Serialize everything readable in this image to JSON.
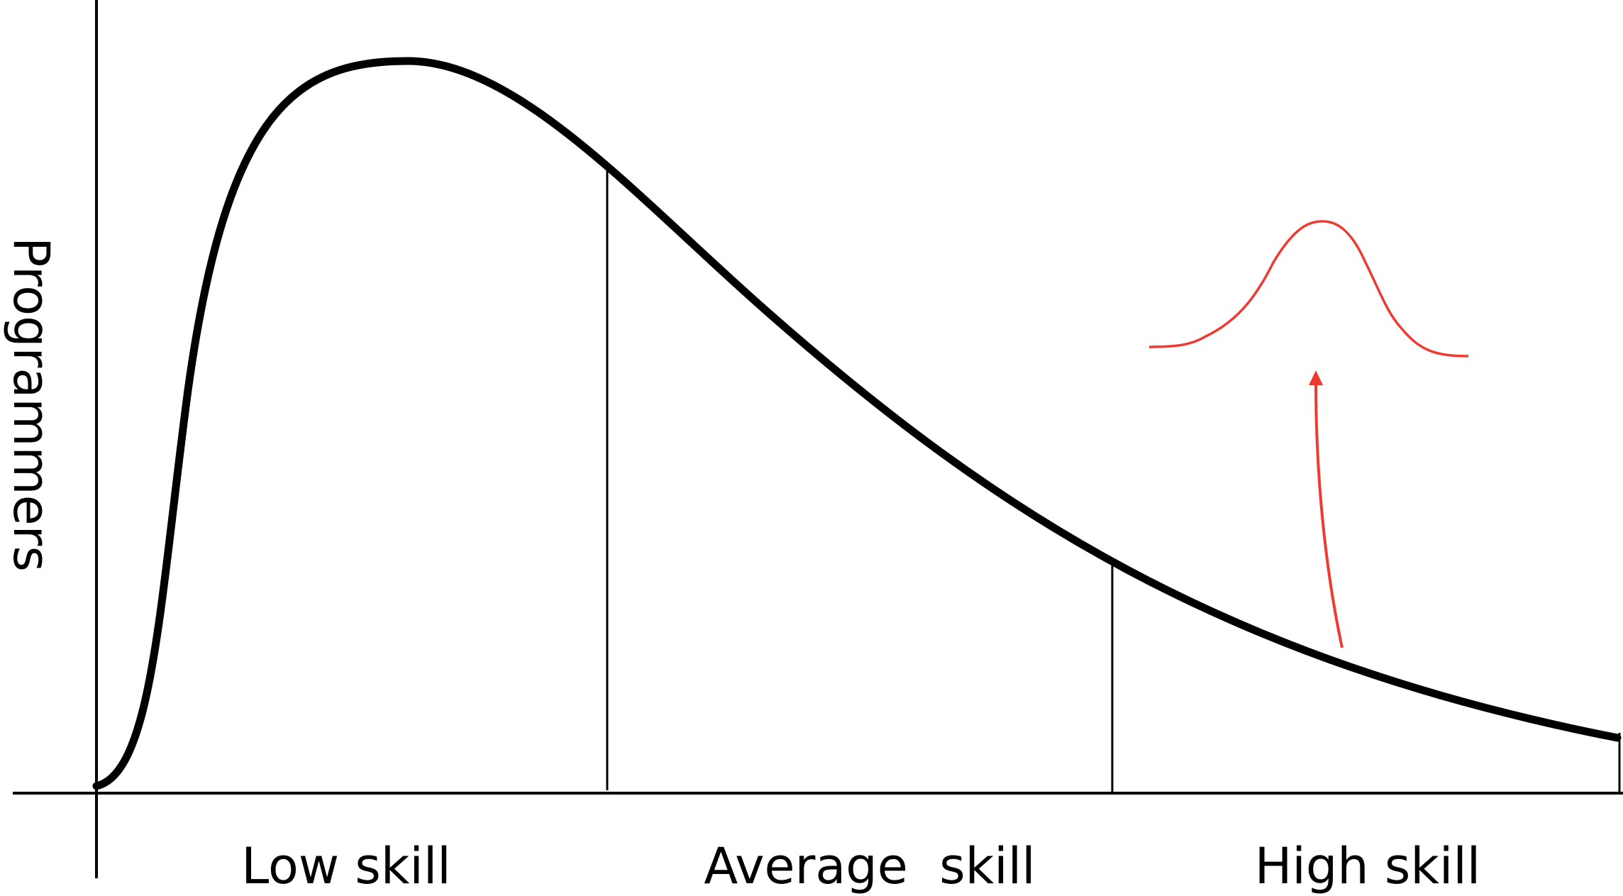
{
  "y_axis": {
    "label": "Programmers"
  },
  "x_axis": {
    "labels": [
      "Low skill",
      "Average  skill",
      "High skill"
    ]
  },
  "colors": {
    "curve": "#000000",
    "accent": "#ee3b32"
  }
}
